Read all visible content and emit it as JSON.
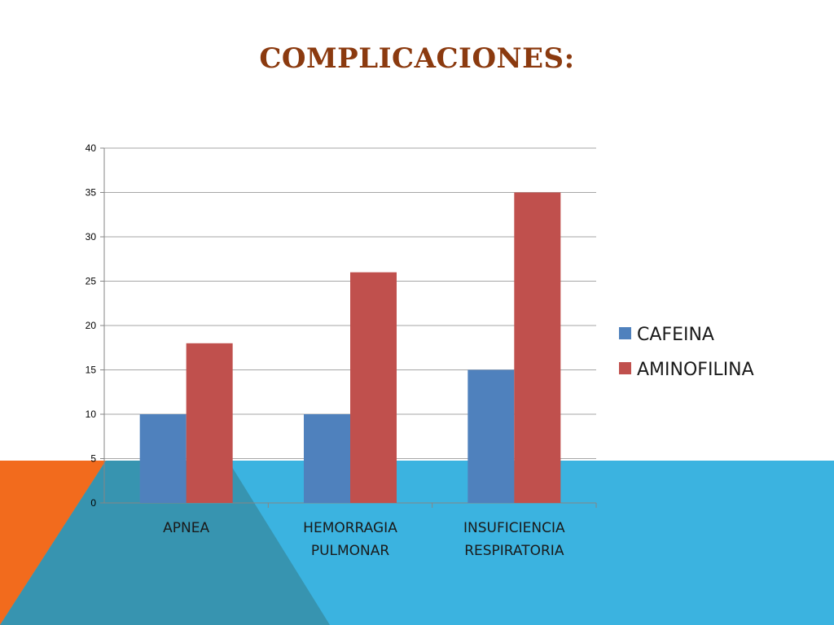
{
  "slide": {
    "title": "COMPLICACIONES:"
  },
  "colors": {
    "cafeina": "#4F81BD",
    "aminofilina": "#C0504D",
    "band_blue": "#3BB3E0",
    "band_orange": "#F26B1D",
    "band_teal": "#3794B0",
    "gridline": "#A6A6A6"
  },
  "chart_data": {
    "type": "bar",
    "title": "",
    "xlabel": "",
    "ylabel": "",
    "ylim": [
      0,
      40
    ],
    "ytick_step": 5,
    "grid": true,
    "legend_position": "right",
    "categories": [
      [
        "APNEA"
      ],
      [
        "HEMORRAGIA",
        "PULMONAR"
      ],
      [
        "INSUFICIENCIA",
        "RESPIRATORIA"
      ]
    ],
    "series": [
      {
        "name": "CAFEINA",
        "values": [
          10,
          10,
          15
        ]
      },
      {
        "name": "AMINOFILINA",
        "values": [
          18,
          26,
          35
        ]
      }
    ]
  }
}
